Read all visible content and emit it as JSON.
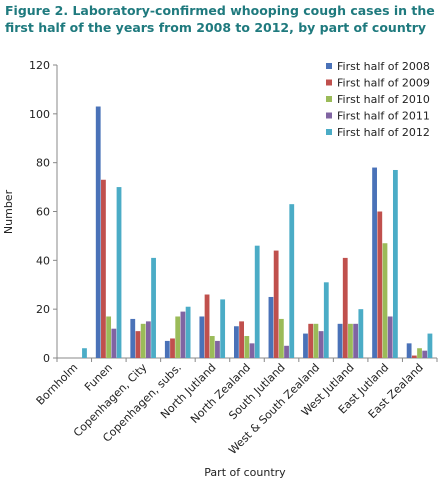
{
  "title": "Figure 2. Laboratory-confirmed whooping cough cases in the first half of the years from 2008 to 2012, by part of country",
  "chart_data": {
    "type": "bar",
    "title": "",
    "xlabel": "Part of country",
    "ylabel": "Number",
    "ylim": [
      0,
      120
    ],
    "yticks": [
      0,
      20,
      40,
      60,
      80,
      100,
      120
    ],
    "grid": false,
    "legend": "top-right",
    "categories": [
      "Bornholm",
      "Funen",
      "Copenhagen, City",
      "Copenhagen, subs.",
      "North Jutland",
      "North Zealand",
      "South Jutland",
      "West & South Zealand",
      "West Jutland",
      "East Jutland",
      "East Zealand"
    ],
    "series": [
      {
        "name": "First half of 2008",
        "color": "#4a72b8",
        "values": [
          0,
          103,
          16,
          7,
          17,
          13,
          25,
          10,
          14,
          78,
          6
        ]
      },
      {
        "name": "First half of 2009",
        "color": "#c0504d",
        "values": [
          0,
          73,
          11,
          8,
          26,
          15,
          44,
          14,
          41,
          60,
          1
        ]
      },
      {
        "name": "First half of 2010",
        "color": "#9bbb59",
        "values": [
          0,
          17,
          14,
          17,
          9,
          9,
          16,
          14,
          14,
          47,
          4
        ]
      },
      {
        "name": "First half of 2011",
        "color": "#8064a2",
        "values": [
          0,
          12,
          15,
          19,
          7,
          6,
          5,
          11,
          14,
          17,
          3
        ]
      },
      {
        "name": "First half of 2012",
        "color": "#4bacc6",
        "values": [
          4,
          70,
          41,
          21,
          24,
          46,
          63,
          31,
          20,
          77,
          10
        ]
      }
    ]
  }
}
